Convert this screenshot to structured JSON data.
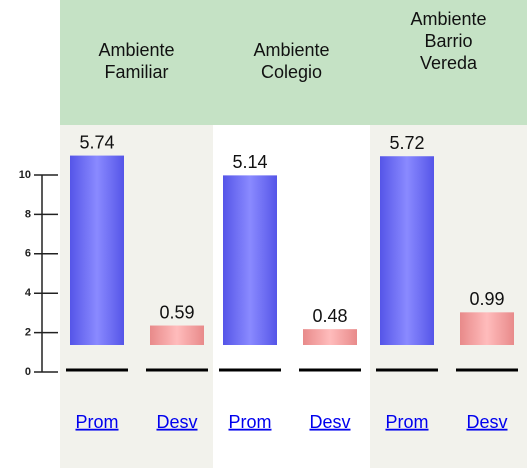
{
  "axis": {
    "ticks": [
      0,
      2,
      4,
      6,
      8,
      10
    ]
  },
  "columns": [
    {
      "title": [
        "Ambiente",
        "Familiar"
      ],
      "bars": [
        {
          "link": "Prom",
          "value": 5.74
        },
        {
          "link": "Desv",
          "value": 0.59
        }
      ]
    },
    {
      "title": [
        "Ambiente",
        "Colegio"
      ],
      "bars": [
        {
          "link": "Prom",
          "value": 5.14
        },
        {
          "link": "Desv",
          "value": 0.48
        }
      ]
    },
    {
      "title": [
        "Ambiente",
        "Barrio",
        "Vereda"
      ],
      "bars": [
        {
          "link": "Prom",
          "value": 5.72
        },
        {
          "link": "Desv",
          "value": 0.99
        }
      ]
    }
  ]
}
